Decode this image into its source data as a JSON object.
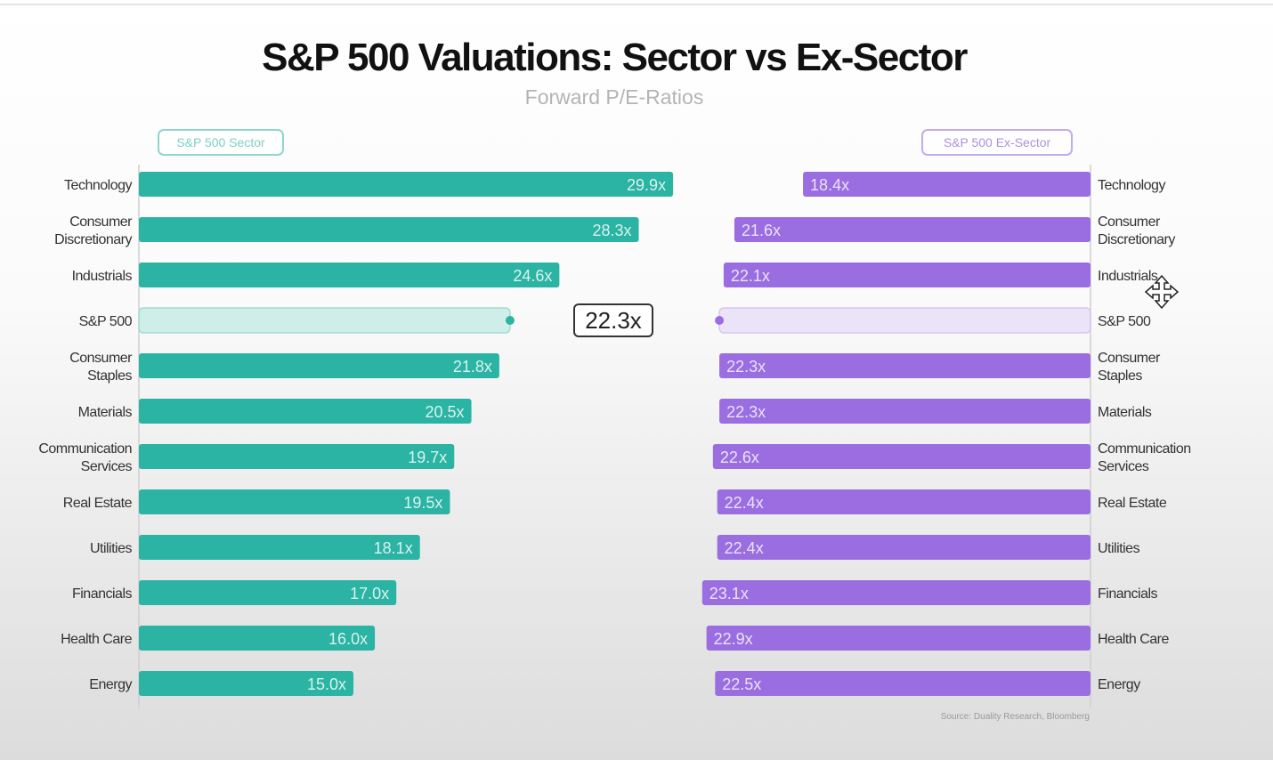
{
  "title": "S&P 500 Valuations: Sector vs Ex-Sector",
  "subtitle": "Forward P/E-Ratios",
  "source": "Source: Duality Research, Bloomberg",
  "colors": {
    "sector": "#2bb3a3",
    "exsector": "#9a6ee0",
    "sector_ref": "#cfeeea",
    "exsector_ref": "#ebe3f8"
  },
  "chart_data": {
    "type": "bar",
    "title": "S&P 500 Valuations: Sector vs Ex-Sector",
    "subtitle": "Forward P/E-Ratios",
    "categories": [
      [
        "Technology"
      ],
      [
        "Consumer",
        "Discretionary"
      ],
      [
        "Industrials"
      ],
      [
        "S&P 500"
      ],
      [
        "Consumer",
        "Staples"
      ],
      [
        "Materials"
      ],
      [
        "Communication",
        "Services"
      ],
      [
        "Real Estate"
      ],
      [
        "Utilities"
      ],
      [
        "Financials"
      ],
      [
        "Health Care"
      ],
      [
        "Energy"
      ]
    ],
    "reference_category": "S&P 500",
    "reference_label": "22.3x",
    "series": [
      {
        "name": "S&P 500 Sector",
        "values": [
          29.9,
          28.3,
          24.6,
          22.3,
          21.8,
          20.5,
          19.7,
          19.5,
          18.1,
          17.0,
          16.0,
          15.0
        ],
        "labels": [
          "29.9x",
          "28.3x",
          "24.6x",
          "",
          "21.8x",
          "20.5x",
          "19.7x",
          "19.5x",
          "18.1x",
          "17.0x",
          "16.0x",
          "15.0x"
        ]
      },
      {
        "name": "S&P 500 Ex-Sector",
        "values": [
          18.4,
          21.6,
          22.1,
          22.3,
          22.3,
          22.3,
          22.6,
          22.4,
          22.4,
          23.1,
          22.9,
          22.5
        ],
        "labels": [
          "18.4x",
          "21.6x",
          "22.1x",
          "",
          "22.3x",
          "22.3x",
          "22.6x",
          "22.4x",
          "22.4x",
          "23.1x",
          "22.9x",
          "22.5x"
        ]
      }
    ],
    "xlim": [
      5,
      30
    ],
    "xlabel": "",
    "ylabel": ""
  }
}
